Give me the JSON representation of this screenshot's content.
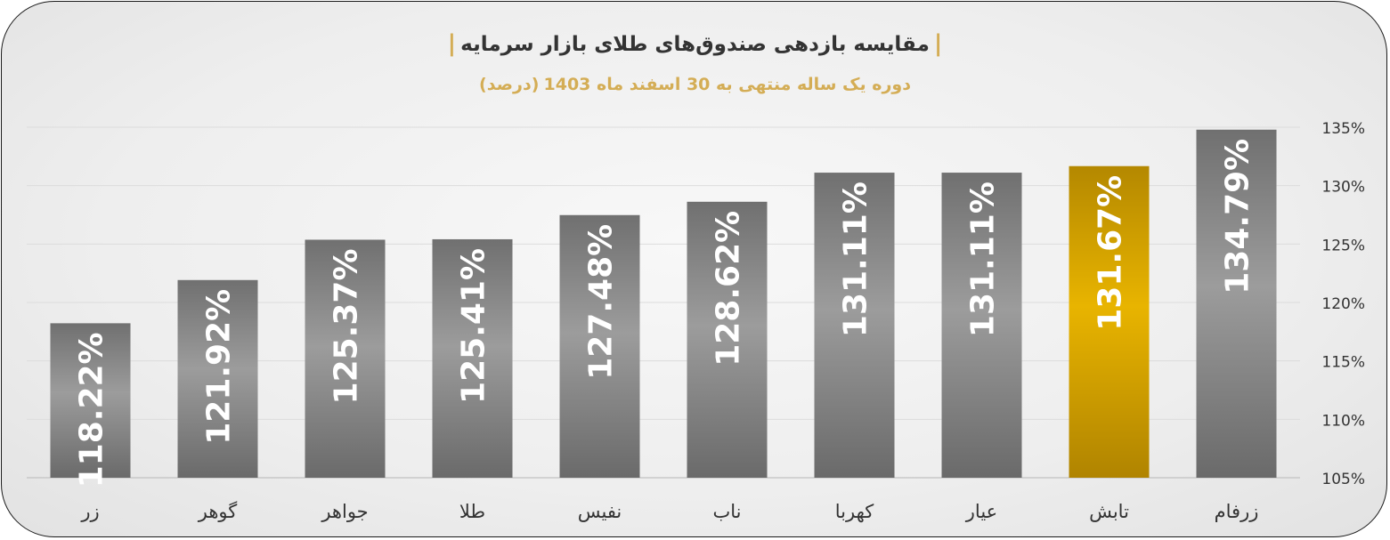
{
  "title": "مقایسه بازدهی صندوق‌های طلای بازار سرمایه",
  "subtitle": "دوره یک ساله منتهی به 30 اسفند ماه 1403",
  "subtitle_unit": "(درصد)",
  "colors": {
    "bar_gray_dark": "#6e6e6e",
    "bar_gray_light": "#9a9a9a",
    "bar_gold_dark": "#b88a00",
    "bar_gold_light": "#e5b000",
    "title_accent": "#d4ad55",
    "text": "#333333"
  },
  "chart_data": {
    "type": "bar",
    "categories": [
      "زر",
      "گوهر",
      "جواهر",
      "طلا",
      "نفیس",
      "ناب",
      "کهربا",
      "عیار",
      "تابش",
      "زرفام"
    ],
    "values": [
      118.22,
      121.92,
      125.37,
      125.41,
      127.48,
      128.62,
      131.11,
      131.11,
      131.67,
      134.79
    ],
    "data_labels": [
      "118.22%",
      "121.92%",
      "125.37%",
      "125.41%",
      "127.48%",
      "128.62%",
      "131.11%",
      "131.11%",
      "131.67%",
      "134.79%"
    ],
    "highlighted_category": "تابش",
    "ylim": [
      105,
      135
    ],
    "y_ticks": [
      105,
      110,
      115,
      120,
      125,
      130,
      135
    ],
    "y_tick_labels": [
      "105%",
      "110%",
      "115%",
      "120%",
      "125%",
      "130%",
      "135%"
    ],
    "y_axis_side": "right",
    "grid": true,
    "xlabel": "",
    "ylabel": ""
  }
}
